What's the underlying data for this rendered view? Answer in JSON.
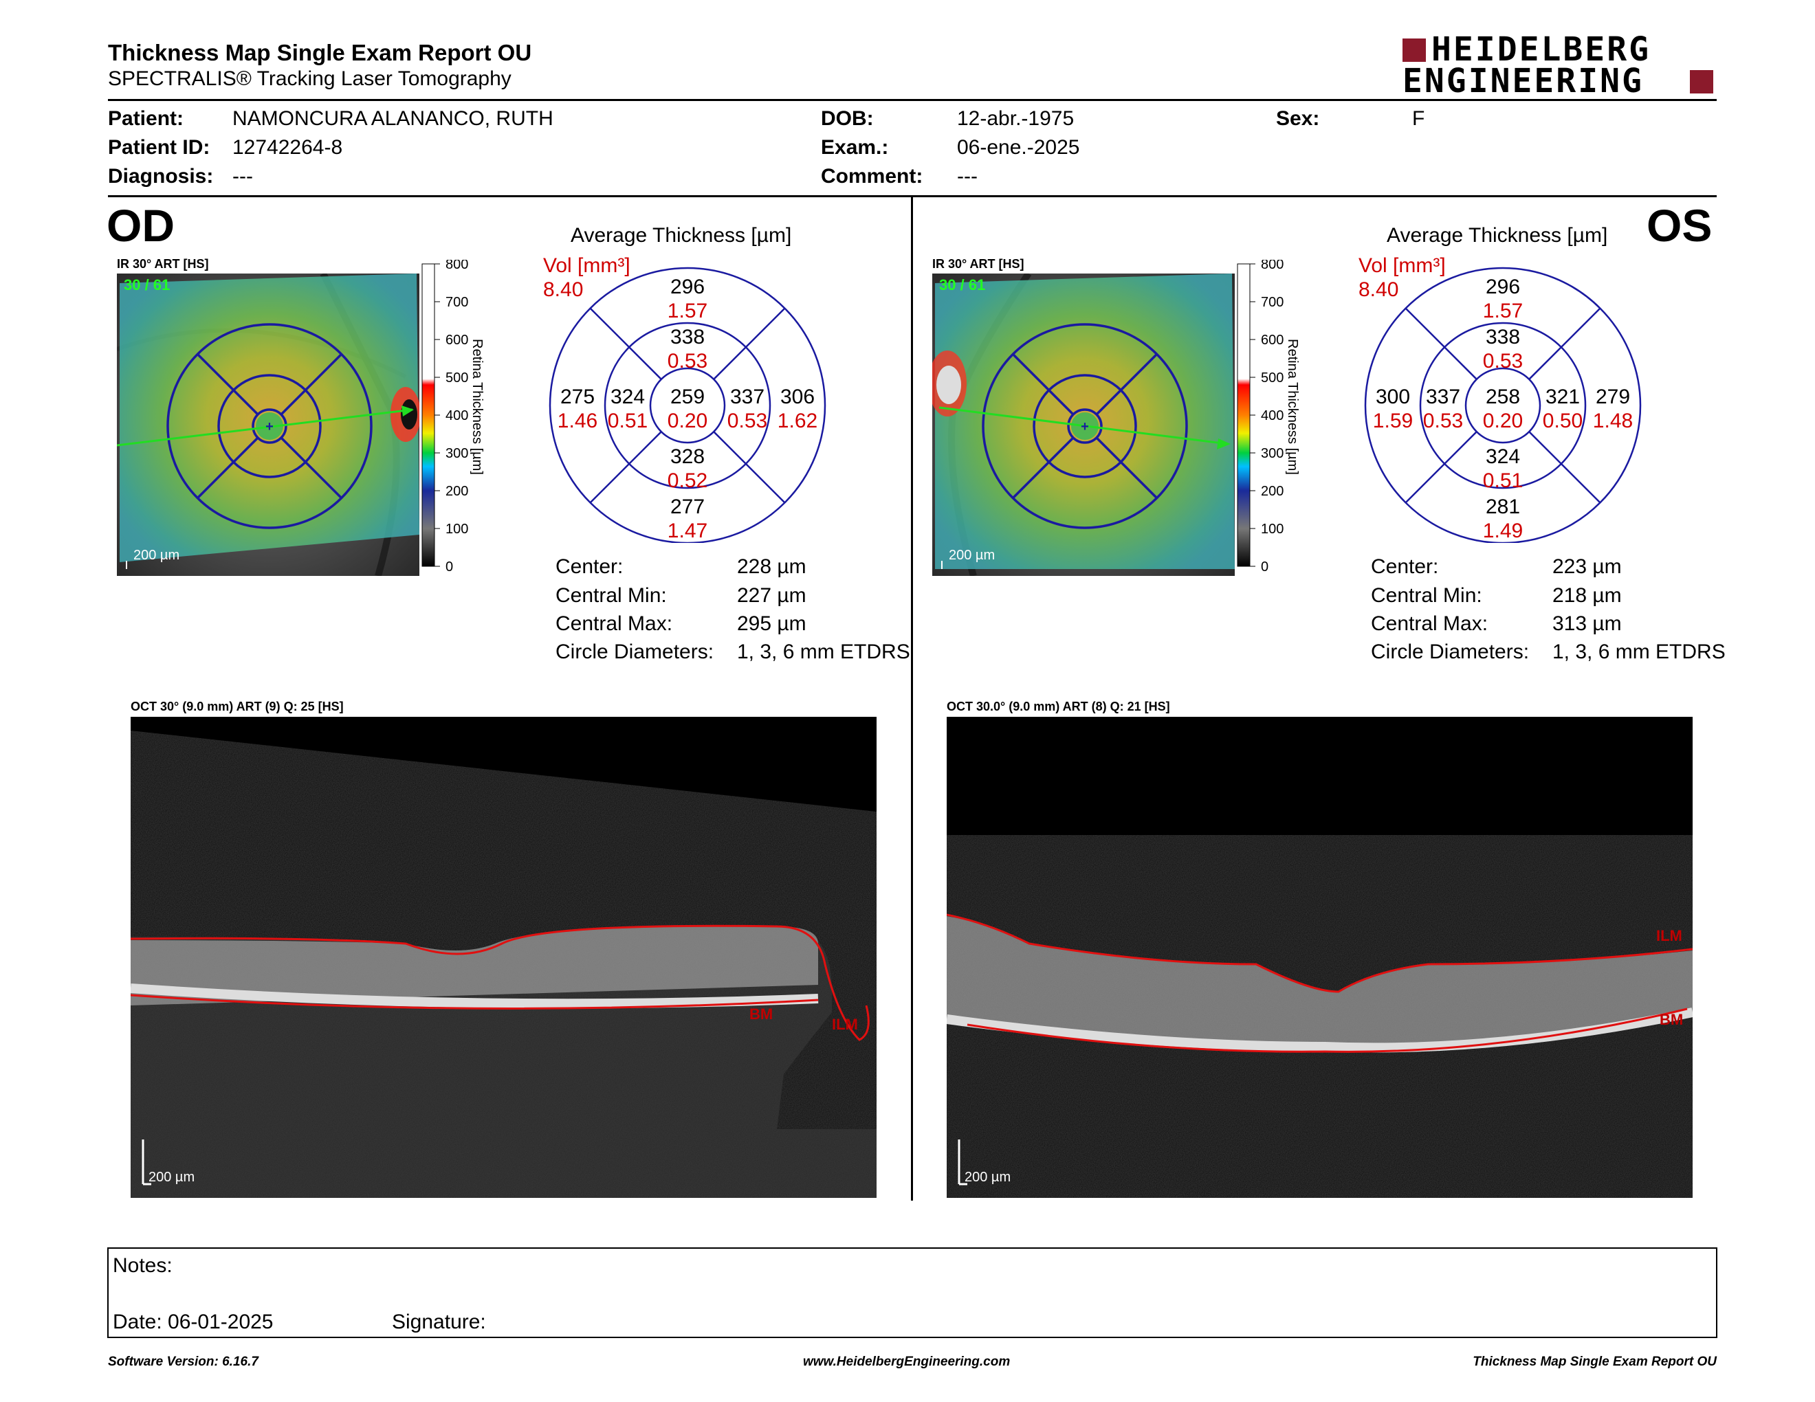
{
  "header": {
    "title": "Thickness Map Single Exam Report OU",
    "subtitle": "SPECTRALIS® Tracking Laser Tomography",
    "logo_line1": "HEIDELBERG",
    "logo_line2": "ENGINEERING"
  },
  "patient": {
    "patient_label": "Patient:",
    "patient_value": "NAMONCURA ALANANCO, RUTH",
    "id_label": "Patient ID:",
    "id_value": "12742264-8",
    "diagnosis_label": "Diagnosis:",
    "diagnosis_value": "---",
    "dob_label": "DOB:",
    "dob_value": "12-abr.-1975",
    "exam_label": "Exam.:",
    "exam_value": "06-ene.-2025",
    "comment_label": "Comment:",
    "comment_value": "---",
    "sex_label": "Sex:",
    "sex_value": "F"
  },
  "scale": {
    "ticks": [
      "800",
      "700",
      "600",
      "500",
      "400",
      "300",
      "200",
      "100",
      "0"
    ],
    "axis_label": "Retina Thickness [µm]"
  },
  "od": {
    "eye": "OD",
    "ir_label": "IR 30° ART [HS]",
    "frame_label": "30 / 61",
    "scale_bar": "200 µm",
    "avg_title": "Average Thickness [µm]",
    "vol_label": "Vol [mm³]",
    "vol_total": "8.40",
    "etdrs": {
      "center": {
        "t": "259",
        "v": "0.20"
      },
      "inner_sup": {
        "t": "338",
        "v": "0.53"
      },
      "inner_inf": {
        "t": "328",
        "v": "0.52"
      },
      "inner_left": {
        "t": "324",
        "v": "0.51"
      },
      "inner_right": {
        "t": "337",
        "v": "0.53"
      },
      "outer_sup": {
        "t": "296",
        "v": "1.57"
      },
      "outer_inf": {
        "t": "277",
        "v": "1.47"
      },
      "outer_left": {
        "t": "275",
        "v": "1.46"
      },
      "outer_right": {
        "t": "306",
        "v": "1.62"
      }
    },
    "stats": {
      "center_label": "Center:",
      "center_value": "228 µm",
      "cmin_label": "Central Min:",
      "cmin_value": "227 µm",
      "cmax_label": "Central Max:",
      "cmax_value": "295 µm",
      "circ_label": "Circle Diameters:",
      "circ_value": "1, 3, 6 mm ETDRS"
    },
    "oct_label": "OCT 30° (9.0 mm) ART (9) Q: 25 [HS]",
    "oct_scale": "200 µm",
    "layer_bm": "BM",
    "layer_ilm": "ILM"
  },
  "os": {
    "eye": "OS",
    "ir_label": "IR 30° ART [HS]",
    "frame_label": "30 / 61",
    "scale_bar": "200 µm",
    "avg_title": "Average Thickness [µm]",
    "vol_label": "Vol [mm³]",
    "vol_total": "8.40",
    "etdrs": {
      "center": {
        "t": "258",
        "v": "0.20"
      },
      "inner_sup": {
        "t": "338",
        "v": "0.53"
      },
      "inner_inf": {
        "t": "324",
        "v": "0.51"
      },
      "inner_left": {
        "t": "337",
        "v": "0.53"
      },
      "inner_right": {
        "t": "321",
        "v": "0.50"
      },
      "outer_sup": {
        "t": "296",
        "v": "1.57"
      },
      "outer_inf": {
        "t": "281",
        "v": "1.49"
      },
      "outer_left": {
        "t": "300",
        "v": "1.59"
      },
      "outer_right": {
        "t": "279",
        "v": "1.48"
      }
    },
    "stats": {
      "center_label": "Center:",
      "center_value": "223 µm",
      "cmin_label": "Central Min:",
      "cmin_value": "218 µm",
      "cmax_label": "Central Max:",
      "cmax_value": "313 µm",
      "circ_label": "Circle Diameters:",
      "circ_value": "1, 3, 6 mm ETDRS"
    },
    "oct_label": "OCT 30.0° (9.0 mm) ART (8) Q: 21 [HS]",
    "oct_scale": "200 µm",
    "layer_bm": "BM",
    "layer_ilm": "ILM"
  },
  "notes": {
    "notes_label": "Notes:",
    "date_label": "Date: 06-01-2025",
    "signature_label": "Signature:"
  },
  "footer": {
    "left": "Software Version: 6.16.7",
    "center": "www.HeidelbergEngineering.com",
    "right": "Thickness Map Single Exam Report OU"
  },
  "colors": {
    "logo_red": "#8b1a2b",
    "etdrs_blue": "#1a1aa0",
    "vol_red": "#d00000",
    "scan_arrow_green": "#22dd22"
  }
}
